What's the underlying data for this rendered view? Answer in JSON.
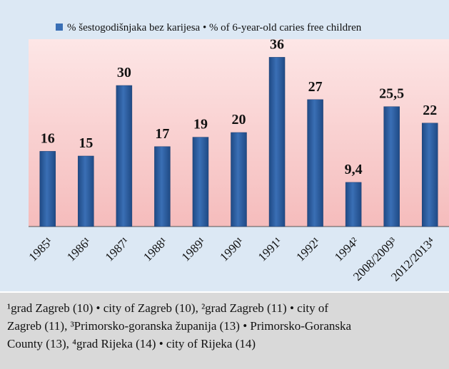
{
  "chart_data": {
    "type": "bar",
    "legend": "% šestogodišnjaka bez karijesa • % of 6-year-old caries free children",
    "color": "#3a6fb5",
    "categories": [
      "1985¹",
      "1986¹",
      "1987¹",
      "1988¹",
      "1989¹",
      "1990¹",
      "1991¹",
      "1992¹",
      "1994²",
      "2008/2009³",
      "2012/2013⁴"
    ],
    "values": [
      16,
      15,
      30,
      17,
      19,
      20,
      36,
      27,
      9.4,
      25.5,
      22
    ],
    "value_labels": [
      "16",
      "15",
      "30",
      "17",
      "19",
      "20",
      "36",
      "27",
      "9,4",
      "25,5",
      "22"
    ],
    "footnote": [
      "¹grad Zagreb (10) • city of Zagreb (10), ²grad Zagreb (11) • city of",
      "Zagreb (11), ³Primorsko-goranska županija (13) • Primorsko-Goranska",
      "County (13), ⁴grad Rijeka (14) • city of Rijeka (14)"
    ]
  }
}
